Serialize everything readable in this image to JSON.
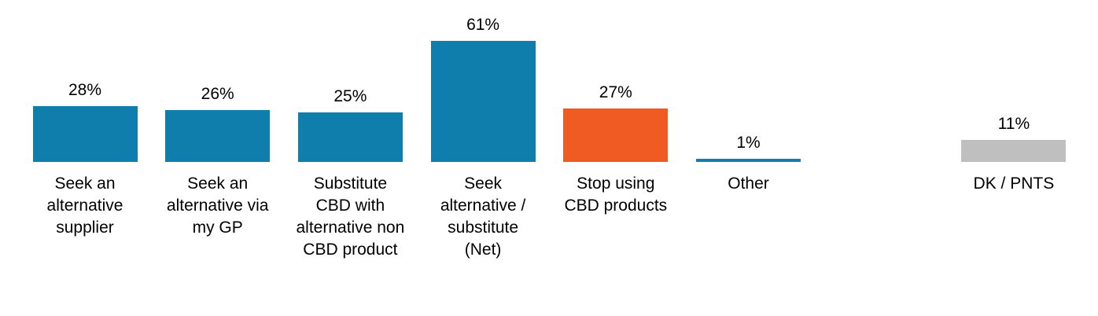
{
  "chart_data": {
    "type": "bar",
    "categories": [
      "Seek an\nalternative\nsupplier",
      "Seek an\nalternative via\nmy GP",
      "Substitute\nCBD with\nalternative non\nCBD product",
      "Seek\nalternative /\nsubstitute\n(Net)",
      "Stop using\nCBD products",
      "Other",
      "DK / PNTS"
    ],
    "values": [
      28,
      26,
      25,
      61,
      27,
      1,
      11
    ],
    "value_labels": [
      "28%",
      "26%",
      "25%",
      "61%",
      "27%",
      "1%",
      "11%"
    ],
    "bar_colors": [
      "#0F7EAD",
      "#0F7EAD",
      "#0F7EAD",
      "#0F7EAD",
      "#F05B24",
      "#0F7EAD",
      "#BFBFBF"
    ],
    "accent_blue": "#0F7EAD",
    "accent_orange": "#F05B24",
    "accent_gray": "#BFBFBF",
    "text_color": "#000000",
    "background_color": "#FFFFFF",
    "title": "",
    "xlabel": "",
    "ylabel": "",
    "ylim": [
      0,
      70
    ],
    "slot_indices": [
      0,
      1,
      2,
      3,
      4,
      5,
      7
    ],
    "total_slots": 8,
    "axes_visible": false,
    "grid": false,
    "legend": "none",
    "value_label_position": "above-bar"
  }
}
